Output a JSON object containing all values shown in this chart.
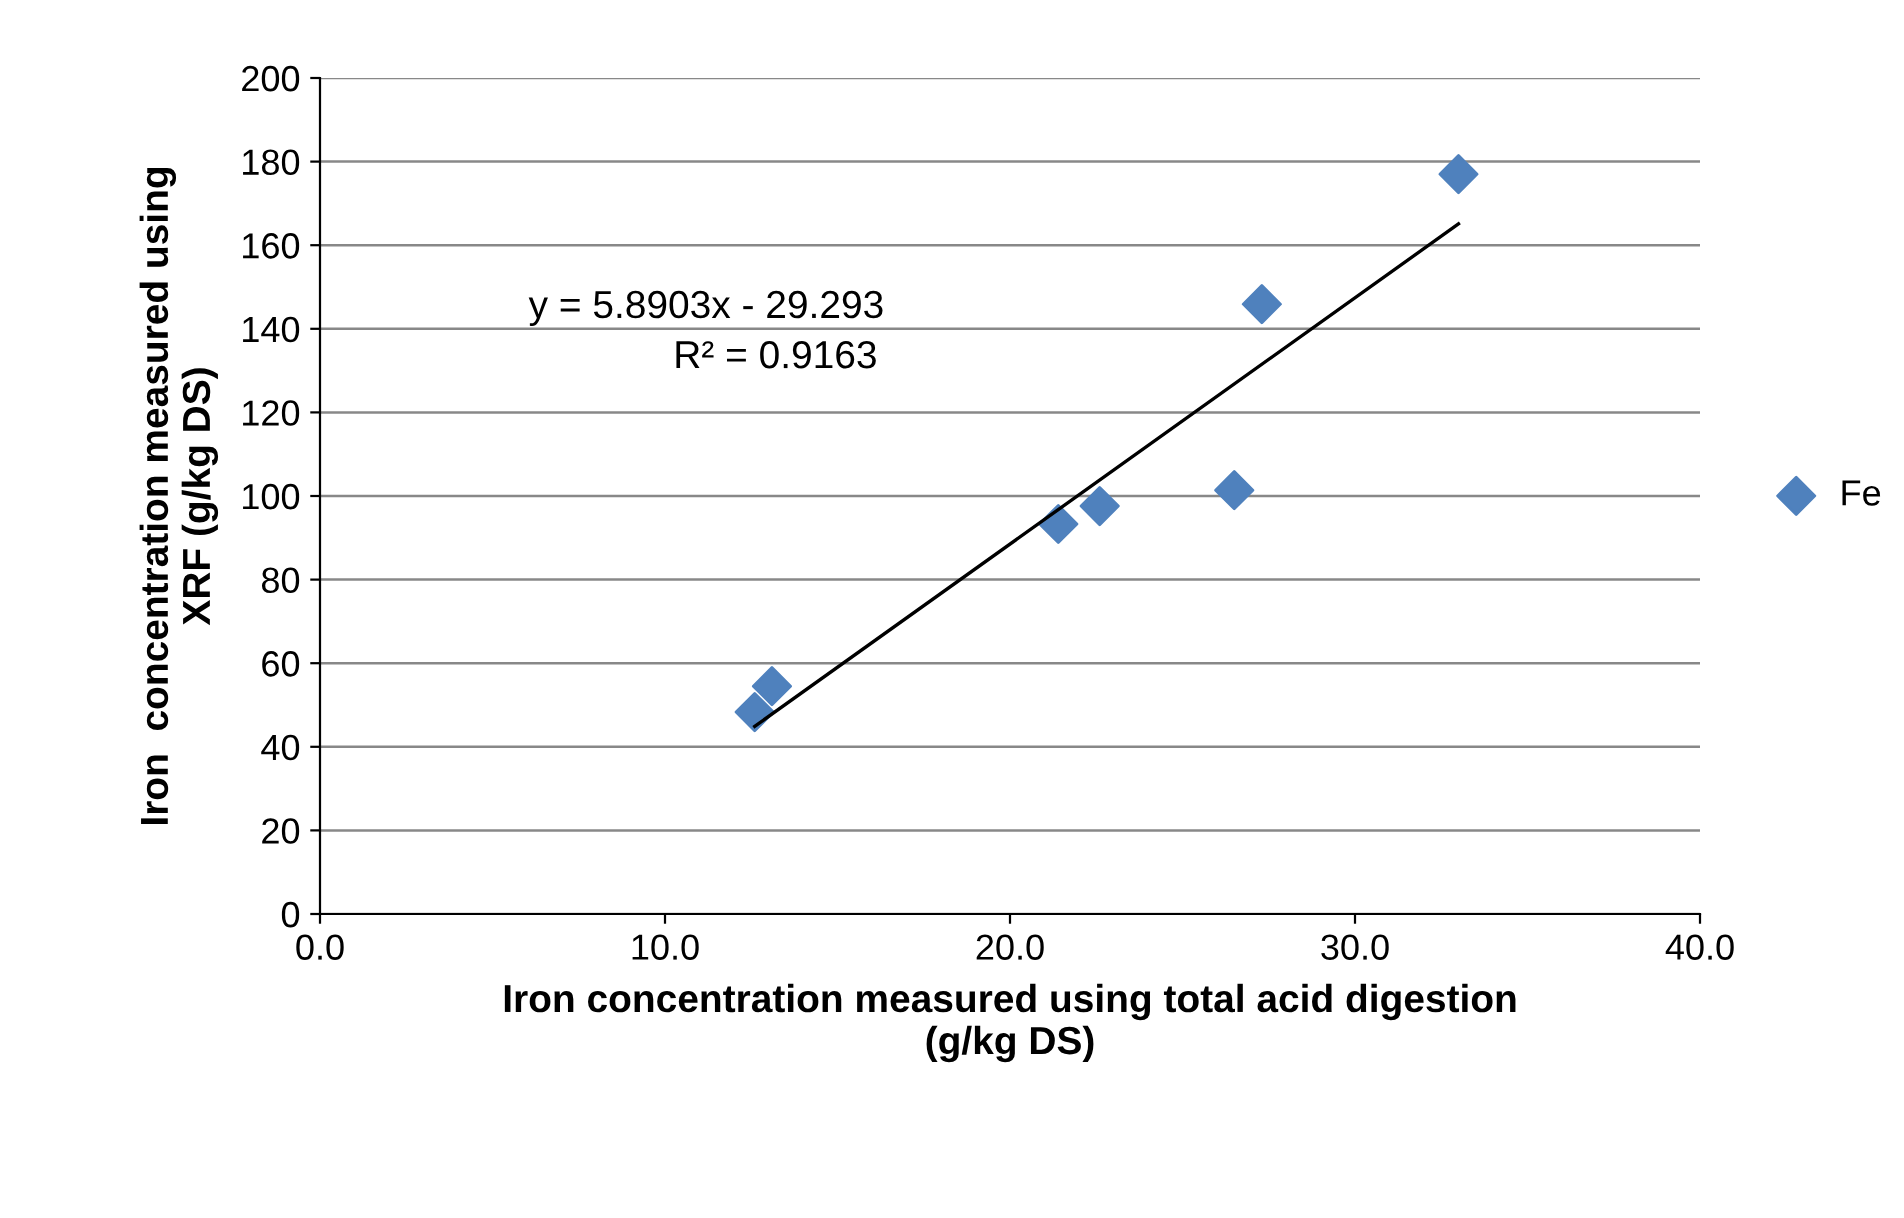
{
  "chart_data": {
    "type": "scatter",
    "xlabel": "Iron concentration measured using total acid digestion\n(g/kg DS)",
    "ylabel": "Iron  concentration measured using\nXRF (g/kg DS)",
    "series": [
      {
        "name": "Fe",
        "color": "#4f81bd",
        "marker": "diamond",
        "x": [
          12.6,
          13.1,
          21.4,
          22.6,
          26.5,
          27.3,
          33.0
        ],
        "values": [
          48.3,
          54.5,
          93.3,
          97.6,
          101.4,
          145.9,
          177.0
        ]
      },
      {
        "type": "line",
        "color": "#000000",
        "marker": "none",
        "line_style": "solid",
        "x": [
          12.6,
          33.0
        ],
        "values": [
          44.9,
          165.1
        ]
      }
    ],
    "annotations": [
      "y = 5.8903x - 29.293",
      "R² = 0.9163"
    ],
    "xlim": [
      0,
      40
    ],
    "xticks": [
      {
        "value": 0,
        "label": "0.0"
      },
      {
        "value": 10,
        "label": "10.0"
      },
      {
        "value": 20,
        "label": "20.0"
      },
      {
        "value": 30,
        "label": "30.0"
      },
      {
        "value": 40,
        "label": "40.0"
      }
    ],
    "ylim": [
      0,
      200
    ],
    "yticks": [
      0,
      20,
      40,
      60,
      80,
      100,
      120,
      140,
      160,
      180,
      200
    ],
    "grid": "y",
    "legend": "right"
  }
}
